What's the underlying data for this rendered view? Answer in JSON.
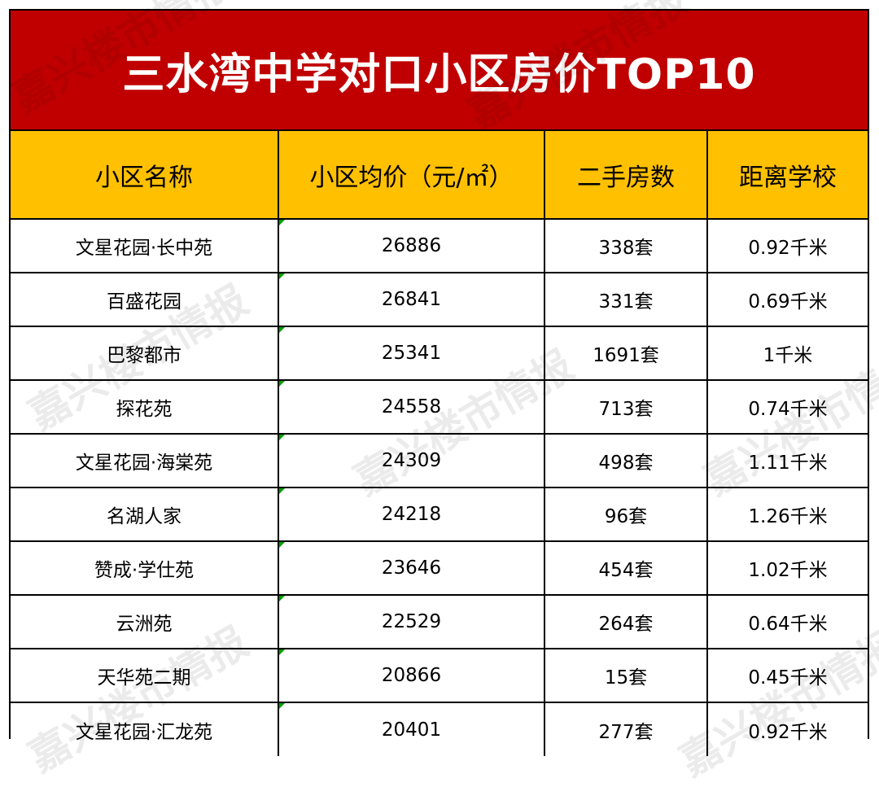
{
  "title": "三水湾中学对口小区房价TOP10",
  "headers": [
    "小区名称",
    "小区均价（元/㎡）",
    "二手房数",
    "距离学校"
  ],
  "rows": [
    [
      "文星花园·长中苑",
      "26886",
      "338套",
      "0.92千米"
    ],
    [
      "百盛花园",
      "26841",
      "331套",
      "0.69千米"
    ],
    [
      "巴黎都市",
      "25341",
      "1691套",
      "1千米"
    ],
    [
      "探花苑",
      "24558",
      "713套",
      "0.74千米"
    ],
    [
      "文星花园·海棠苑",
      "24309",
      "498套",
      "1.11千米"
    ],
    [
      "名湖人家",
      "24218",
      "96套",
      "1.26千米"
    ],
    [
      "赞成·学仕苑",
      "23646",
      "454套",
      "1.02千米"
    ],
    [
      "云洲苑",
      "22529",
      "264套",
      "0.64千米"
    ],
    [
      "天华苑二期",
      "20866",
      "15套",
      "0.45千米"
    ],
    [
      "文星花园·汇龙苑",
      "20401",
      "277套",
      "0.92千米"
    ]
  ],
  "watermark": "嘉兴楼市情报",
  "colors": {
    "title_bg": "#c00000",
    "header_bg": "#ffc000",
    "cell_marker": "#00a000"
  }
}
